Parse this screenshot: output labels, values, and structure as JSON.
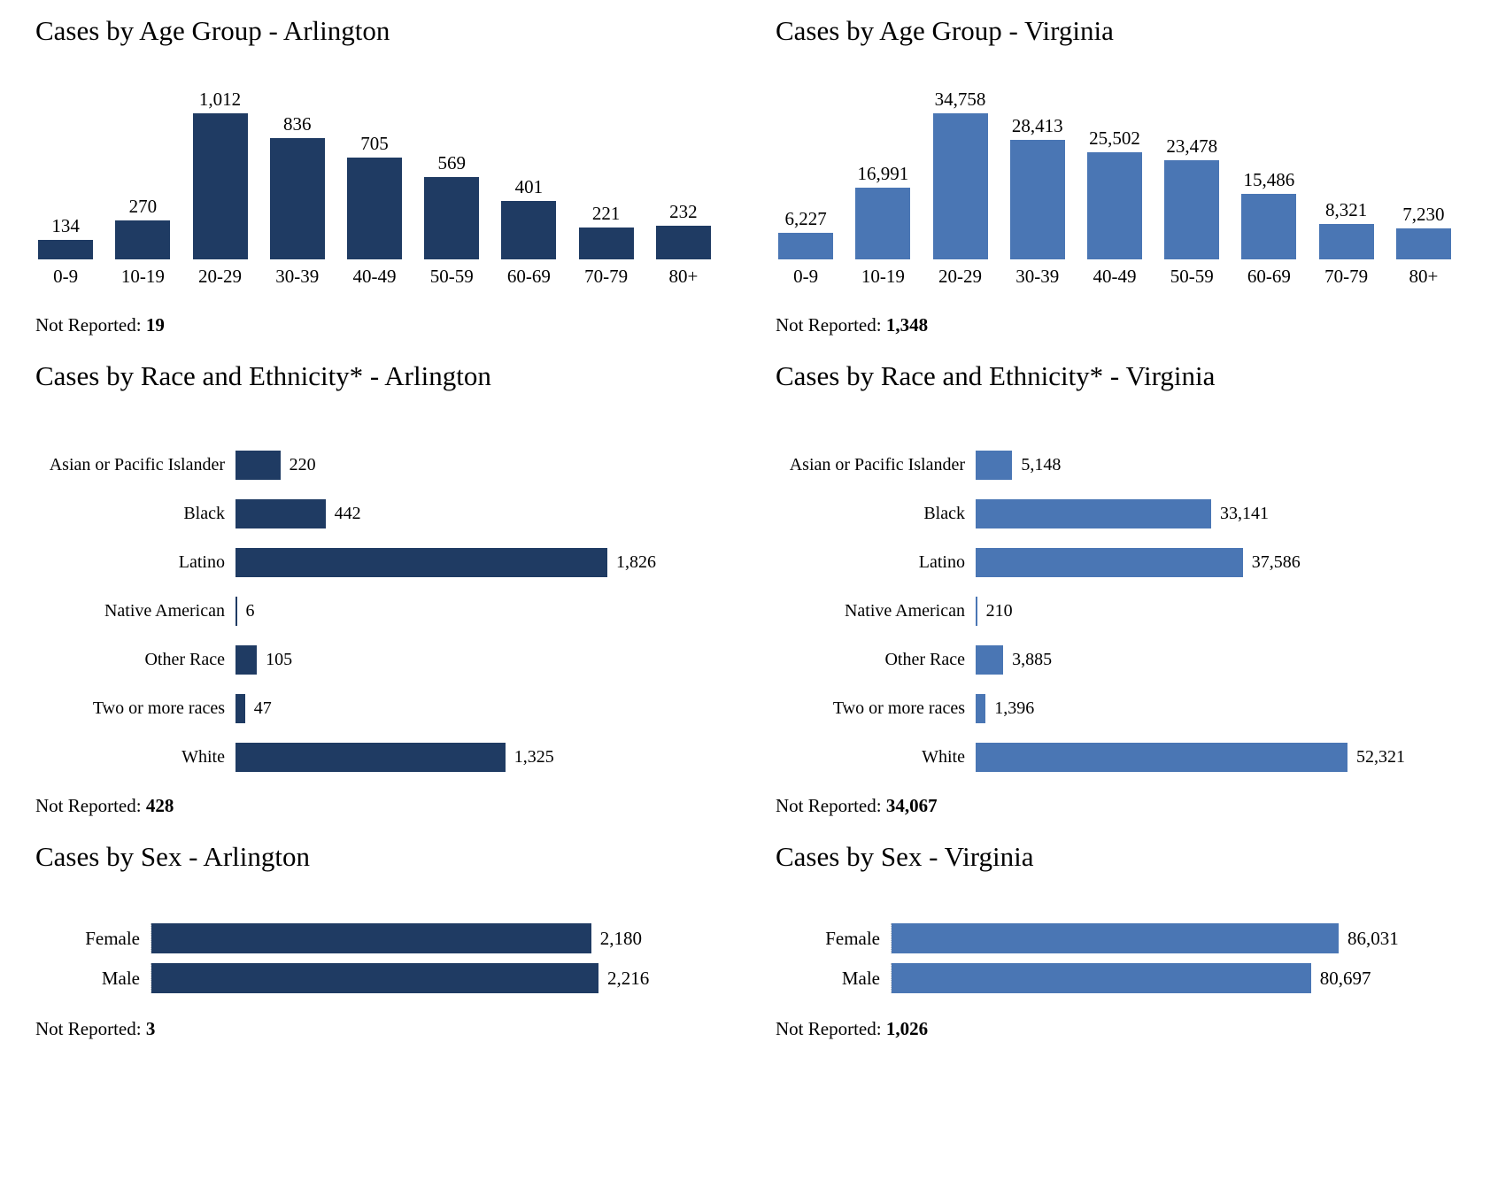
{
  "not_reported_label": "Not Reported:",
  "colors": {
    "arlington": "#1f3b63",
    "virginia": "#4a76b4"
  },
  "chart_data": [
    {
      "type": "bar",
      "orientation": "vertical",
      "title": "Cases by Age Group - Arlington",
      "categories": [
        "0-9",
        "10-19",
        "20-29",
        "30-39",
        "40-49",
        "50-59",
        "60-69",
        "70-79",
        "80+"
      ],
      "values": [
        134,
        270,
        1012,
        836,
        705,
        569,
        401,
        221,
        232
      ],
      "value_labels": [
        "134",
        "270",
        "1,012",
        "836",
        "705",
        "569",
        "401",
        "221",
        "232"
      ],
      "color": "#1f3b63",
      "ylim": [
        0,
        1012
      ],
      "legend": "none",
      "grid": "off",
      "not_reported_label": "Not Reported:",
      "not_reported_value": "19"
    },
    {
      "type": "bar",
      "orientation": "vertical",
      "title": "Cases by Age Group - Virginia",
      "categories": [
        "0-9",
        "10-19",
        "20-29",
        "30-39",
        "40-49",
        "50-59",
        "60-69",
        "70-79",
        "80+"
      ],
      "values": [
        6227,
        16991,
        34758,
        28413,
        25502,
        23478,
        15486,
        8321,
        7230
      ],
      "value_labels": [
        "6,227",
        "16,991",
        "34,758",
        "28,413",
        "25,502",
        "23,478",
        "15,486",
        "8,321",
        "7,230"
      ],
      "color": "#4a76b4",
      "ylim": [
        0,
        34758
      ],
      "legend": "none",
      "grid": "off",
      "not_reported_label": "Not Reported:",
      "not_reported_value": "1,348"
    },
    {
      "type": "bar",
      "orientation": "horizontal",
      "title": "Cases by Race and Ethnicity* - Arlington",
      "categories": [
        "Asian or Pacific Islander",
        "Black",
        "Latino",
        "Native American",
        "Other Race",
        "Two or more races",
        "White"
      ],
      "values": [
        220,
        442,
        1826,
        6,
        105,
        47,
        1325
      ],
      "value_labels": [
        "220",
        "442",
        "1,826",
        "6",
        "105",
        "47",
        "1,325"
      ],
      "color": "#1f3b63",
      "xlim": [
        0,
        1826
      ],
      "legend": "none",
      "grid": "off",
      "not_reported_label": "Not Reported:",
      "not_reported_value": "428"
    },
    {
      "type": "bar",
      "orientation": "horizontal",
      "title": "Cases by Race and Ethnicity* - Virginia",
      "categories": [
        "Asian or Pacific Islander",
        "Black",
        "Latino",
        "Native American",
        "Other Race",
        "Two or more races",
        "White"
      ],
      "values": [
        5148,
        33141,
        37586,
        210,
        3885,
        1396,
        52321
      ],
      "value_labels": [
        "5,148",
        "33,141",
        "37,586",
        "210",
        "3,885",
        "1,396",
        "52,321"
      ],
      "color": "#4a76b4",
      "xlim": [
        0,
        52321
      ],
      "legend": "none",
      "grid": "off",
      "not_reported_label": "Not Reported:",
      "not_reported_value": "34,067"
    },
    {
      "type": "bar",
      "orientation": "horizontal",
      "title": "Cases by Sex - Arlington",
      "categories": [
        "Female",
        "Male"
      ],
      "values": [
        2180,
        2216
      ],
      "value_labels": [
        "2,180",
        "2,216"
      ],
      "color": "#1f3b63",
      "xlim": [
        0,
        2216
      ],
      "legend": "none",
      "grid": "off",
      "not_reported_label": "Not Reported:",
      "not_reported_value": "3"
    },
    {
      "type": "bar",
      "orientation": "horizontal",
      "title": "Cases by Sex - Virginia",
      "categories": [
        "Female",
        "Male"
      ],
      "values": [
        86031,
        80697
      ],
      "value_labels": [
        "86,031",
        "80,697"
      ],
      "color": "#4a76b4",
      "xlim": [
        0,
        86031
      ],
      "legend": "none",
      "grid": "off",
      "not_reported_label": "Not Reported:",
      "not_reported_value": "1,026"
    }
  ]
}
